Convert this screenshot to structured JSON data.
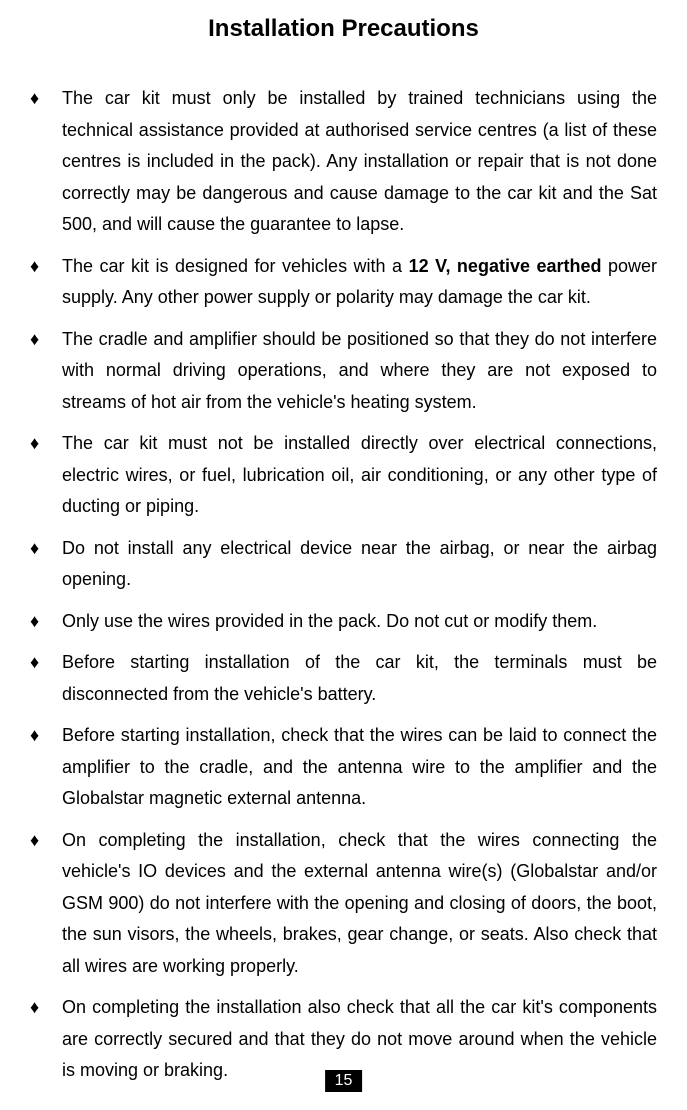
{
  "title": "Installation Precautions",
  "bullets": [
    {
      "parts": [
        {
          "text": "The car kit must only be installed by trained technicians using the technical assistance provided at authorised service centres (a list of these centres is included in the pack). Any installation or repair that is not done correctly may be dangerous and cause damage to the car kit and the Sat 500, and will cause the guarantee to lapse.",
          "bold": false
        }
      ]
    },
    {
      "parts": [
        {
          "text": "The car kit is designed for vehicles with a ",
          "bold": false
        },
        {
          "text": "12 V, negative earthed",
          "bold": true
        },
        {
          "text": " power supply. Any other power supply or polarity may damage the car kit.",
          "bold": false
        }
      ]
    },
    {
      "parts": [
        {
          "text": "The cradle and amplifier should be positioned so that they do not interfere with normal driving operations, and where they are not exposed to streams of hot air from the vehicle's heating system.",
          "bold": false
        }
      ]
    },
    {
      "parts": [
        {
          "text": "The car kit must not be installed directly over electrical connections, electric wires, or fuel, lubrication oil, air conditioning, or any other type of ducting or piping.",
          "bold": false
        }
      ]
    },
    {
      "parts": [
        {
          "text": "Do not install any electrical device near the airbag, or near the airbag opening.",
          "bold": false
        }
      ]
    },
    {
      "parts": [
        {
          "text": "Only use the wires provided in the pack. Do not cut or modify them.",
          "bold": false
        }
      ]
    },
    {
      "parts": [
        {
          "text": "Before starting installation of the car kit, the terminals must be disconnected from the vehicle's battery.",
          "bold": false
        }
      ]
    },
    {
      "parts": [
        {
          "text": " Before starting installation, check that the wires can be laid to connect the amplifier to the cradle, and the antenna wire to the  amplifier and the Globalstar magnetic external antenna.",
          "bold": false
        }
      ]
    },
    {
      "parts": [
        {
          "text": "On completing the installation, check that the wires connecting the vehicle's IO devices and the external antenna wire(s) (Globalstar and/or GSM 900) do not interfere with the opening and closing  of doors, the boot, the sun visors, the wheels, brakes, gear change, or seats. Also check that all wires are working properly.",
          "bold": false
        }
      ]
    },
    {
      "parts": [
        {
          "text": "On completing the installation also check that all the car kit's components are correctly secured and that they do not move around when the vehicle is moving or braking.",
          "bold": false
        }
      ]
    }
  ],
  "bullet_marker": "♦",
  "page_number": "15",
  "colors": {
    "background": "#ffffff",
    "text": "#000000",
    "page_number_bg": "#000000",
    "page_number_text": "#ffffff"
  },
  "fonts": {
    "title_size": 24,
    "body_size": 18,
    "page_number_size": 16
  }
}
